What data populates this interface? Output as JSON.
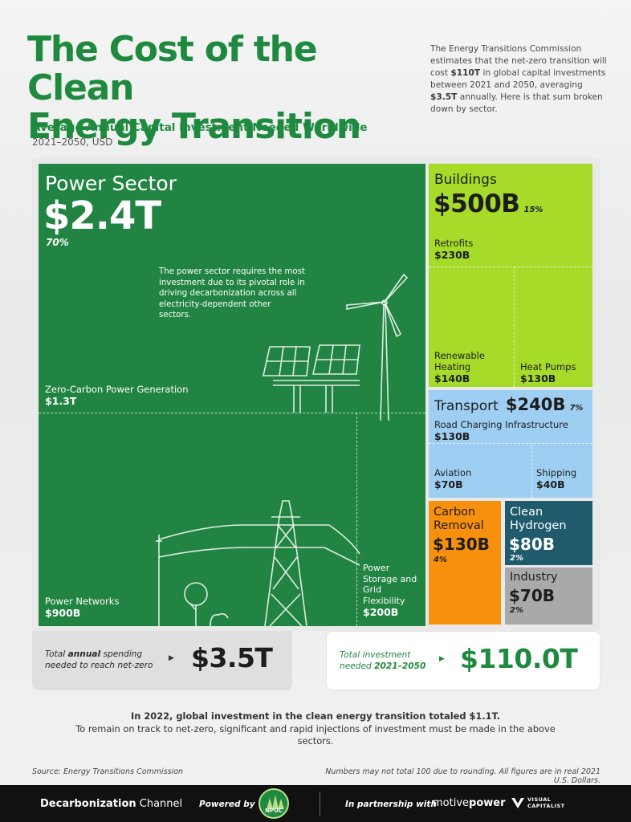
{
  "header": {
    "title_line1": "The Cost of the Clean",
    "title_line2": "Energy Transition",
    "intro_part1": "The Energy Transitions Commission estimates that the net-zero transition will cost ",
    "intro_bold1": "$110T",
    "intro_part2": " in global capital investments between 2021 and 2050, averaging ",
    "intro_bold2": "$3.5T",
    "intro_part3": " annually. Here is that sum broken down by sector.",
    "subtitle": "Average Annual Capital Investment Needed Worldwide",
    "subtitle2": "2021–2050, USD"
  },
  "chart_data": {
    "type": "treemap",
    "unit": "USD",
    "sectors": [
      {
        "name": "Power Sector",
        "value": "$2.4T",
        "value_num": 2400,
        "share": "70%",
        "note": "The power sector requires the most investment due to its pivotal role in driving decarbonization across all electricity-dependent other sectors.",
        "subsectors": [
          {
            "name": "Zero-Carbon Power Generation",
            "value": "$1.3T",
            "value_num": 1300
          },
          {
            "name": "Power Networks",
            "value": "$900B",
            "value_num": 900
          },
          {
            "name": "Power Storage and Grid Flexibility",
            "value": "$200B",
            "value_num": 200
          }
        ]
      },
      {
        "name": "Buildings",
        "value": "$500B",
        "value_num": 500,
        "share": "15%",
        "subsectors": [
          {
            "name": "Retrofits",
            "value": "$230B",
            "value_num": 230
          },
          {
            "name": "Renewable Heating",
            "value": "$140B",
            "value_num": 140
          },
          {
            "name": "Heat Pumps",
            "value": "$130B",
            "value_num": 130
          }
        ]
      },
      {
        "name": "Transport",
        "value": "$240B",
        "value_num": 240,
        "share": "7%",
        "subsectors": [
          {
            "name": "Road Charging Infrastructure",
            "value": "$130B",
            "value_num": 130
          },
          {
            "name": "Aviation",
            "value": "$70B",
            "value_num": 70
          },
          {
            "name": "Shipping",
            "value": "$40B",
            "value_num": 40
          }
        ]
      },
      {
        "name": "Carbon Removal",
        "value": "$130B",
        "value_num": 130,
        "share": "4%"
      },
      {
        "name": "Clean Hydrogen",
        "value": "$80B",
        "value_num": 80,
        "share": "2%"
      },
      {
        "name": "Industry",
        "value": "$70B",
        "value_num": 70,
        "share": "2%"
      }
    ]
  },
  "totals": {
    "annual_label_pre": "Total ",
    "annual_label_bold": "annual",
    "annual_label_post": " spending needed to reach net-zero",
    "annual_value": "$3.5T",
    "invest_label_pre": "Total investment needed ",
    "invest_label_bold": "2021–2050",
    "invest_value": "$110.0T",
    "arrow": "▶"
  },
  "footnote": {
    "line1": "In 2022, global investment in the clean energy transition totaled $1.1T.",
    "line2": "To remain on track to net-zero, significant and rapid injections of investment must be made in the above sectors."
  },
  "source": "Source: Energy Transitions Commission",
  "note": "Numbers may not total 100 due to rounding.  All figures are in real 2021 U.S. Dollars.",
  "footer": {
    "brand_bold": "Decarbonization",
    "brand_rest": " Channel",
    "powered_by": "Powered by",
    "npuc": "NPUC",
    "partnership": "In partnership with",
    "motive_1": "motive",
    "motive_2": "power",
    "vc_line1": "VISUAL",
    "vc_line2": "CAPITALIST"
  },
  "colors": {
    "power": "#228442",
    "buildings": "#a6db2a",
    "transport": "#9ecff3",
    "carbon_removal": "#f7900d",
    "clean_hydrogen": "#1f5a6d",
    "industry": "#a9a9a9",
    "title_green": "#1f8a3f"
  },
  "icons": [
    "wind-turbine-icon",
    "solar-panel-icon",
    "transmission-tower-icon",
    "tree-icon"
  ]
}
